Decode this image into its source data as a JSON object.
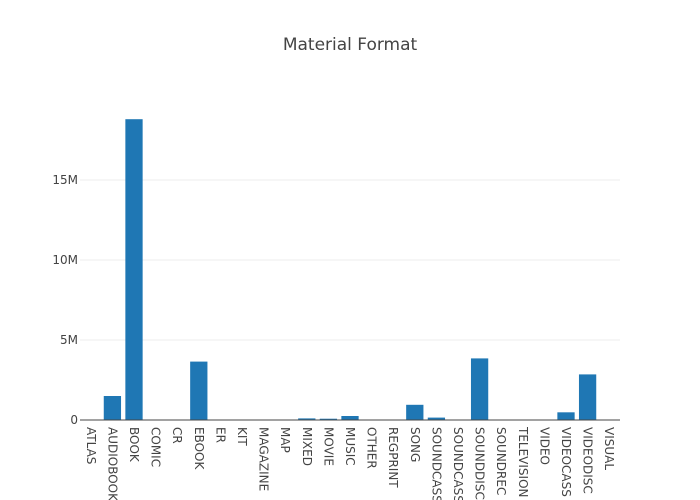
{
  "chart_data": {
    "type": "bar",
    "title": "Material Format",
    "xlabel": "",
    "ylabel": "",
    "categories": [
      "ATLAS",
      "AUDIOBOOK",
      "BOOK",
      "COMIC",
      "CR",
      "EBOOK",
      "ER",
      "KIT",
      "MAGAZINE",
      "MAP",
      "MIXED",
      "MOVIE",
      "MUSIC",
      "OTHER",
      "REGPRINT",
      "SONG",
      "SOUNDCASS",
      "SOUNDCASS,",
      "SOUNDDISC",
      "SOUNDREC",
      "TELEVISION",
      "VIDEO",
      "VIDEOCASS",
      "VIDEODISC",
      "VISUAL"
    ],
    "values": [
      5000,
      1500000,
      18800000,
      5000,
      30000,
      3650000,
      20000,
      10000,
      10000,
      5000,
      100000,
      80000,
      250000,
      5000,
      5000,
      950000,
      150000,
      10000,
      3850000,
      10000,
      30000,
      30000,
      480000,
      2850000,
      10000
    ],
    "ylim": [
      0,
      20000000
    ],
    "yticks": [
      0,
      5000000,
      10000000,
      15000000
    ],
    "ytick_labels": [
      "0",
      "5M",
      "10M",
      "15M"
    ],
    "grid": true,
    "bar_color": "#1f77b4"
  }
}
